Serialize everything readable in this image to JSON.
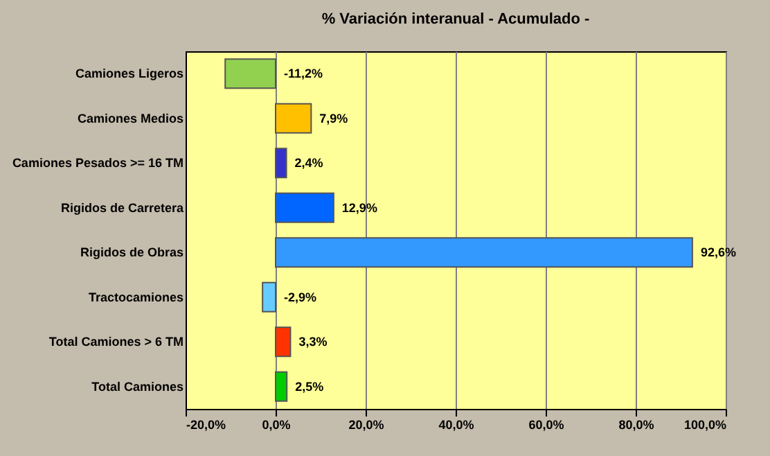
{
  "chart_data": {
    "type": "bar",
    "orientation": "horizontal",
    "title": "% Variación  interanual - Acumulado -",
    "categories": [
      "Camiones Ligeros",
      "Camiones Medios",
      "Camiones Pesados >= 16 TM",
      "Rigidos de Carretera",
      "Rigidos de Obras",
      "Tractocamiones",
      "Total Camiones  > 6 TM",
      "Total Camiones"
    ],
    "values": [
      -11.2,
      7.9,
      2.4,
      12.9,
      92.6,
      -2.9,
      3.3,
      2.5
    ],
    "colors": [
      "#92d050",
      "#ffc000",
      "#3333cc",
      "#0066ff",
      "#3399ff",
      "#66ccff",
      "#ff3300",
      "#00cc00"
    ],
    "value_labels": [
      "-11,2%",
      "7,9%",
      "2,4%",
      "12,9%",
      "92,6%",
      "-2,9%",
      "3,3%",
      "2,5%"
    ],
    "xlim": [
      -20,
      100
    ],
    "xticks": [
      {
        "value": -20,
        "label": "-20,0%"
      },
      {
        "value": 0,
        "label": "0,0%"
      },
      {
        "value": 20,
        "label": "20,0%"
      },
      {
        "value": 40,
        "label": "40,0%"
      },
      {
        "value": 60,
        "label": "60,0%"
      },
      {
        "value": 80,
        "label": "80,0%"
      },
      {
        "value": 100,
        "label": "100,0%"
      }
    ],
    "grid": "x"
  }
}
